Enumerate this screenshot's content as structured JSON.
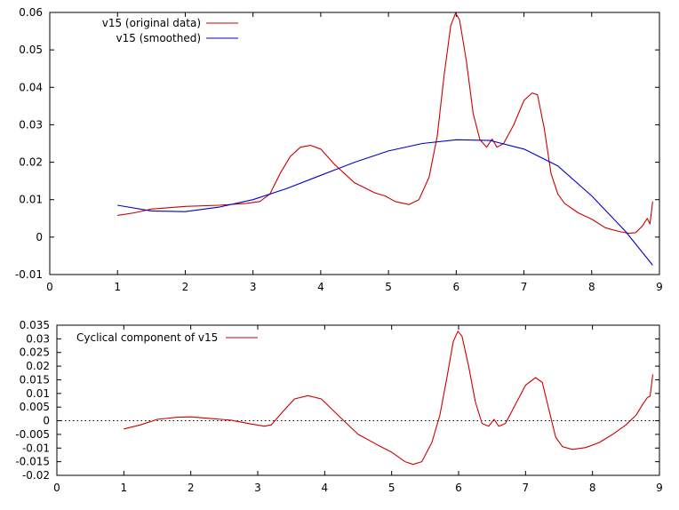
{
  "chart_data": [
    {
      "type": "line",
      "title": "",
      "xlabel": "",
      "ylabel": "",
      "xlim": [
        0,
        9
      ],
      "ylim": [
        -0.01,
        0.06
      ],
      "x_ticks": [
        "0",
        "1",
        "2",
        "3",
        "4",
        "5",
        "6",
        "7",
        "8",
        "9"
      ],
      "y_ticks": [
        "-0.01",
        "0",
        "0.01",
        "0.02",
        "0.03",
        "0.04",
        "0.05",
        "0.06"
      ],
      "grid": false,
      "legend_position": "top-left",
      "series": [
        {
          "name": "v15 (original data)",
          "color": "#cc0000",
          "points": [
            [
              1.0,
              0.0058
            ],
            [
              1.25,
              0.0065
            ],
            [
              1.5,
              0.0075
            ],
            [
              2.0,
              0.0082
            ],
            [
              2.5,
              0.0085
            ],
            [
              2.9,
              0.009
            ],
            [
              3.1,
              0.0095
            ],
            [
              3.25,
              0.0115
            ],
            [
              3.4,
              0.017
            ],
            [
              3.55,
              0.0215
            ],
            [
              3.7,
              0.024
            ],
            [
              3.85,
              0.0245
            ],
            [
              4.0,
              0.0235
            ],
            [
              4.2,
              0.0195
            ],
            [
              4.5,
              0.0145
            ],
            [
              4.8,
              0.0118
            ],
            [
              4.95,
              0.011
            ],
            [
              5.1,
              0.0095
            ],
            [
              5.3,
              0.0087
            ],
            [
              5.45,
              0.01
            ],
            [
              5.6,
              0.016
            ],
            [
              5.72,
              0.027
            ],
            [
              5.82,
              0.043
            ],
            [
              5.92,
              0.0565
            ],
            [
              5.99,
              0.0598
            ],
            [
              6.05,
              0.058
            ],
            [
              6.15,
              0.047
            ],
            [
              6.25,
              0.033
            ],
            [
              6.35,
              0.026
            ],
            [
              6.45,
              0.024
            ],
            [
              6.53,
              0.0262
            ],
            [
              6.6,
              0.024
            ],
            [
              6.7,
              0.025
            ],
            [
              6.85,
              0.03
            ],
            [
              7.0,
              0.0365
            ],
            [
              7.12,
              0.0385
            ],
            [
              7.2,
              0.038
            ],
            [
              7.3,
              0.029
            ],
            [
              7.4,
              0.017
            ],
            [
              7.5,
              0.0115
            ],
            [
              7.6,
              0.009
            ],
            [
              7.8,
              0.0065
            ],
            [
              8.0,
              0.0048
            ],
            [
              8.2,
              0.0025
            ],
            [
              8.4,
              0.0015
            ],
            [
              8.55,
              0.001
            ],
            [
              8.65,
              0.0012
            ],
            [
              8.75,
              0.003
            ],
            [
              8.82,
              0.005
            ],
            [
              8.86,
              0.0035
            ],
            [
              8.9,
              0.0095
            ]
          ]
        },
        {
          "name": "v15 (smoothed)",
          "color": "#0000cc",
          "points": [
            [
              1.0,
              0.0085
            ],
            [
              1.5,
              0.007
            ],
            [
              2.0,
              0.0068
            ],
            [
              2.5,
              0.008
            ],
            [
              3.0,
              0.01
            ],
            [
              3.5,
              0.013
            ],
            [
              4.0,
              0.0165
            ],
            [
              4.5,
              0.02
            ],
            [
              5.0,
              0.023
            ],
            [
              5.5,
              0.025
            ],
            [
              6.0,
              0.026
            ],
            [
              6.5,
              0.0258
            ],
            [
              7.0,
              0.0235
            ],
            [
              7.5,
              0.019
            ],
            [
              8.0,
              0.011
            ],
            [
              8.5,
              0.0015
            ],
            [
              8.9,
              -0.0075
            ]
          ]
        }
      ]
    },
    {
      "type": "line",
      "title": "",
      "xlabel": "",
      "ylabel": "",
      "xlim": [
        0,
        9
      ],
      "ylim": [
        -0.02,
        0.035
      ],
      "x_ticks": [
        "0",
        "1",
        "2",
        "3",
        "4",
        "5",
        "6",
        "7",
        "8",
        "9"
      ],
      "y_ticks": [
        "-0.02",
        "-0.015",
        "-0.01",
        "-0.005",
        "0",
        "0.005",
        "0.01",
        "0.015",
        "0.02",
        "0.025",
        "0.03",
        "0.035"
      ],
      "grid": false,
      "legend_position": "top-left",
      "zero_line": true,
      "series": [
        {
          "name": "Cyclical component of v15",
          "color": "#cc0000",
          "points": [
            [
              1.0,
              -0.003
            ],
            [
              1.25,
              -0.0015
            ],
            [
              1.5,
              0.0005
            ],
            [
              1.8,
              0.0013
            ],
            [
              2.0,
              0.0014
            ],
            [
              2.3,
              0.0008
            ],
            [
              2.6,
              0.0002
            ],
            [
              2.9,
              -0.0012
            ],
            [
              3.1,
              -0.002
            ],
            [
              3.2,
              -0.0015
            ],
            [
              3.4,
              0.004
            ],
            [
              3.55,
              0.008
            ],
            [
              3.75,
              0.0092
            ],
            [
              3.95,
              0.008
            ],
            [
              4.2,
              0.002
            ],
            [
              4.5,
              -0.005
            ],
            [
              4.8,
              -0.009
            ],
            [
              5.0,
              -0.0115
            ],
            [
              5.2,
              -0.015
            ],
            [
              5.32,
              -0.016
            ],
            [
              5.45,
              -0.015
            ],
            [
              5.6,
              -0.008
            ],
            [
              5.72,
              0.002
            ],
            [
              5.82,
              0.015
            ],
            [
              5.92,
              0.029
            ],
            [
              5.99,
              0.0328
            ],
            [
              6.05,
              0.031
            ],
            [
              6.15,
              0.02
            ],
            [
              6.25,
              0.007
            ],
            [
              6.35,
              -0.001
            ],
            [
              6.45,
              -0.002
            ],
            [
              6.53,
              0.0005
            ],
            [
              6.6,
              -0.002
            ],
            [
              6.7,
              -0.001
            ],
            [
              6.85,
              0.006
            ],
            [
              7.0,
              0.013
            ],
            [
              7.15,
              0.0158
            ],
            [
              7.25,
              0.014
            ],
            [
              7.35,
              0.004
            ],
            [
              7.45,
              -0.006
            ],
            [
              7.55,
              -0.0095
            ],
            [
              7.7,
              -0.0105
            ],
            [
              7.9,
              -0.0098
            ],
            [
              8.1,
              -0.008
            ],
            [
              8.3,
              -0.005
            ],
            [
              8.5,
              -0.0015
            ],
            [
              8.65,
              0.002
            ],
            [
              8.75,
              0.006
            ],
            [
              8.82,
              0.0085
            ],
            [
              8.86,
              0.009
            ],
            [
              8.9,
              0.017
            ]
          ]
        }
      ]
    }
  ]
}
